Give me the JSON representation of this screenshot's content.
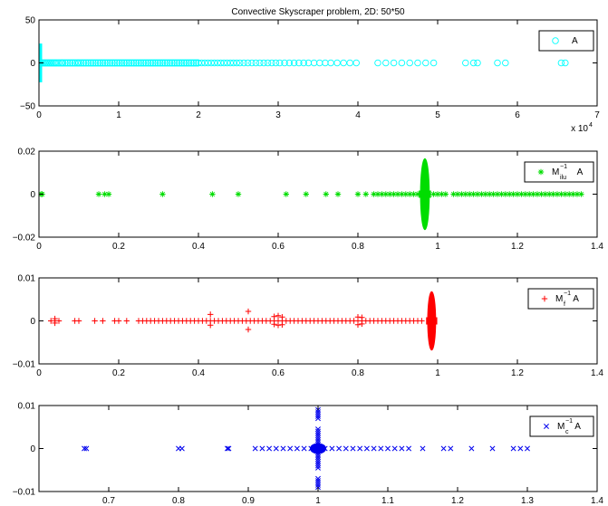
{
  "chart_data": [
    {
      "type": "scatter",
      "title": "Convective Skyscraper problem, 2D: 50*50",
      "xlim": [
        0,
        7
      ],
      "ylim": [
        -50,
        50
      ],
      "x_exponent_label": "x 10",
      "x_exponent_power": "4",
      "x_ticks": [
        0,
        1,
        2,
        3,
        4,
        5,
        6,
        7
      ],
      "x_tick_labels": [
        "0",
        "1",
        "2",
        "3",
        "4",
        "5",
        "6",
        "7"
      ],
      "y_ticks": [
        -50,
        0,
        50
      ],
      "y_tick_labels": [
        "−50",
        "0",
        "50"
      ],
      "legend": "top-right",
      "series": [
        {
          "name": "A",
          "marker": "o",
          "color": "#00ffff",
          "spine": {
            "x": 0.0,
            "y_min": -22,
            "y_max": 22
          },
          "x": [
            0.02,
            0.04,
            0.06,
            0.08,
            0.1,
            0.12,
            0.14,
            0.16,
            0.18,
            0.2,
            0.22,
            0.25,
            0.28,
            0.3,
            0.33,
            0.36,
            0.39,
            0.42,
            0.45,
            0.48,
            0.5,
            0.53,
            0.56,
            0.59,
            0.62,
            0.65,
            0.68,
            0.71,
            0.74,
            0.77,
            0.8,
            0.83,
            0.86,
            0.89,
            0.92,
            0.95,
            0.98,
            1.01,
            1.04,
            1.07,
            1.1,
            1.13,
            1.16,
            1.19,
            1.22,
            1.25,
            1.28,
            1.31,
            1.34,
            1.37,
            1.4,
            1.43,
            1.46,
            1.49,
            1.52,
            1.55,
            1.58,
            1.61,
            1.64,
            1.67,
            1.7,
            1.73,
            1.76,
            1.79,
            1.82,
            1.85,
            1.88,
            1.91,
            1.94,
            1.97,
            2.0,
            2.04,
            2.08,
            2.12,
            2.16,
            2.2,
            2.24,
            2.28,
            2.32,
            2.36,
            2.4,
            2.44,
            2.48,
            2.52,
            2.57,
            2.62,
            2.67,
            2.72,
            2.77,
            2.82,
            2.87,
            2.92,
            2.97,
            3.02,
            3.08,
            3.14,
            3.2,
            3.26,
            3.32,
            3.38,
            3.45,
            3.52,
            3.59,
            3.66,
            3.74,
            3.82,
            3.9,
            3.98,
            4.25,
            4.35,
            4.45,
            4.55,
            4.65,
            4.75,
            4.85,
            4.95,
            5.35,
            5.45,
            5.5,
            5.75,
            5.85,
            6.55,
            6.6
          ]
        }
      ]
    },
    {
      "type": "scatter",
      "xlim": [
        0,
        1.4
      ],
      "ylim": [
        -0.02,
        0.02
      ],
      "x_ticks": [
        0,
        0.2,
        0.4,
        0.6,
        0.8,
        1,
        1.2,
        1.4
      ],
      "x_tick_labels": [
        "0",
        "0.2",
        "0.4",
        "0.6",
        "0.8",
        "1",
        "1.2",
        "1.4"
      ],
      "y_ticks": [
        -0.02,
        0,
        0.02
      ],
      "y_tick_labels": [
        "−0.02",
        "0",
        "0.02"
      ],
      "legend": "top-right",
      "series": [
        {
          "name_main": "M",
          "name_sup": "−1",
          "name_sub": "ilu",
          "name_tail": "A",
          "marker": "*",
          "color": "#00dd00",
          "blob": {
            "x_center": 0.968,
            "y_half": 0.0165,
            "x_width": 0.022
          },
          "x": [
            0.005,
            0.008,
            0.15,
            0.165,
            0.175,
            0.31,
            0.435,
            0.5,
            0.62,
            0.67,
            0.72,
            0.75,
            0.8,
            0.82,
            0.84,
            0.85,
            0.86,
            0.87,
            0.88,
            0.89,
            0.9,
            0.91,
            0.92,
            0.93,
            0.94,
            0.95,
            0.99,
            1.0,
            1.01,
            1.02,
            1.04,
            1.05,
            1.06,
            1.07,
            1.08,
            1.09,
            1.1,
            1.11,
            1.12,
            1.13,
            1.14,
            1.15,
            1.16,
            1.17,
            1.18,
            1.19,
            1.2,
            1.21,
            1.22,
            1.23,
            1.24,
            1.25,
            1.26,
            1.27,
            1.28,
            1.29,
            1.3,
            1.31,
            1.32,
            1.33,
            1.34,
            1.35,
            1.36
          ]
        }
      ]
    },
    {
      "type": "scatter",
      "xlim": [
        0,
        1.4
      ],
      "ylim": [
        -0.01,
        0.01
      ],
      "x_ticks": [
        0,
        0.2,
        0.4,
        0.6,
        0.8,
        1,
        1.2,
        1.4
      ],
      "x_tick_labels": [
        "0",
        "0.2",
        "0.4",
        "0.6",
        "0.8",
        "1",
        "1.2",
        "1.4"
      ],
      "y_ticks": [
        -0.01,
        0,
        0.01
      ],
      "y_tick_labels": [
        "−0.01",
        "0",
        "0.01"
      ],
      "legend": "top-right",
      "series": [
        {
          "name_main": "M",
          "name_sup": "−1",
          "name_sub": "f",
          "name_tail": "A",
          "marker": "+",
          "color": "#ff0000",
          "blob": {
            "x_center": 0.985,
            "y_half": 0.0068,
            "x_width": 0.02
          },
          "x": [
            0.03,
            0.04,
            0.05,
            0.09,
            0.1,
            0.14,
            0.16,
            0.19,
            0.2,
            0.22,
            0.25,
            0.26,
            0.27,
            0.28,
            0.29,
            0.3,
            0.31,
            0.32,
            0.33,
            0.34,
            0.35,
            0.36,
            0.37,
            0.38,
            0.39,
            0.4,
            0.41,
            0.42,
            0.43,
            0.44,
            0.45,
            0.46,
            0.47,
            0.48,
            0.49,
            0.5,
            0.51,
            0.52,
            0.53,
            0.54,
            0.55,
            0.56,
            0.57,
            0.58,
            0.59,
            0.6,
            0.61,
            0.62,
            0.63,
            0.64,
            0.65,
            0.66,
            0.67,
            0.68,
            0.69,
            0.7,
            0.71,
            0.72,
            0.73,
            0.74,
            0.75,
            0.76,
            0.77,
            0.78,
            0.79,
            0.8,
            0.81,
            0.82,
            0.83,
            0.84,
            0.85,
            0.86,
            0.87,
            0.88,
            0.89,
            0.9,
            0.91,
            0.92,
            0.93,
            0.94,
            0.95,
            0.96
          ],
          "offaxis": [
            [
              0.43,
              0.0015
            ],
            [
              0.43,
              -0.001
            ],
            [
              0.525,
              0.0022
            ],
            [
              0.525,
              -0.002
            ],
            [
              0.59,
              0.001
            ],
            [
              0.59,
              -0.0008
            ],
            [
              0.6,
              0.0012
            ],
            [
              0.6,
              -0.001
            ],
            [
              0.61,
              0.0009
            ],
            [
              0.61,
              -0.0009
            ],
            [
              0.8,
              0.0009
            ],
            [
              0.8,
              -0.0009
            ],
            [
              0.81,
              0.0008
            ],
            [
              0.81,
              -0.0007
            ],
            [
              0.04,
              0.0005
            ],
            [
              0.04,
              -0.0005
            ]
          ]
        }
      ]
    },
    {
      "type": "scatter",
      "xlim": [
        0.6,
        1.4
      ],
      "ylim": [
        -0.01,
        0.01
      ],
      "x_ticks": [
        0.7,
        0.8,
        0.9,
        1,
        1.1,
        1.2,
        1.3,
        1.4
      ],
      "x_tick_labels": [
        "0.7",
        "0.8",
        "0.9",
        "1",
        "1.1",
        "1.2",
        "1.3",
        "1.4"
      ],
      "y_ticks": [
        -0.01,
        0,
        0.01
      ],
      "y_tick_labels": [
        "−0.01",
        "0",
        "0.01"
      ],
      "legend": "top-right",
      "series": [
        {
          "name_main": "M",
          "name_sup": "−1",
          "name_sub": "c",
          "name_tail": "A",
          "marker": "x",
          "color": "#0000ee",
          "x": [
            0.665,
            0.668,
            0.8,
            0.805,
            0.87,
            0.872,
            0.91,
            0.92,
            0.93,
            0.94,
            0.95,
            0.96,
            0.97,
            0.98,
            0.99,
            1.01,
            1.02,
            1.03,
            1.04,
            1.05,
            1.06,
            1.07,
            1.08,
            1.09,
            1.1,
            1.11,
            1.12,
            1.13,
            1.15,
            1.18,
            1.19,
            1.22,
            1.25,
            1.28,
            1.29,
            1.3
          ],
          "vertical": {
            "x": 1.0,
            "y_values": [
              0.009,
              0.0085,
              0.008,
              0.0075,
              0.007,
              0.0045,
              0.004,
              0.0035,
              0.003,
              0.0025,
              0.002,
              0.0015,
              0.001,
              0.0005,
              -0.0005,
              -0.001,
              -0.0015,
              -0.002,
              -0.0025,
              -0.003,
              -0.0035,
              -0.004,
              -0.0045,
              -0.007,
              -0.0075,
              -0.008,
              -0.0085,
              -0.009
            ]
          }
        }
      ]
    }
  ]
}
